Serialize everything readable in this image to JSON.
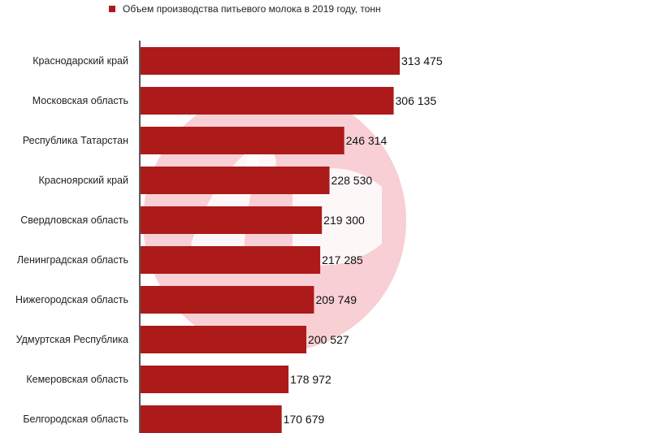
{
  "colors": {
    "bar": "#ac1a1a",
    "watermark": "#f2a9b1",
    "axis": "#222222"
  },
  "watermark": {
    "icon": "logo-circle-watermark"
  },
  "chart_data": {
    "type": "bar",
    "orientation": "horizontal",
    "title": "",
    "xlabel": "",
    "ylabel": "",
    "xlim": [
      0,
      313475
    ],
    "grid": false,
    "legend_position": "top-left",
    "categories": [
      "Краснодарский край",
      "Московская область",
      "Республика Татарстан",
      "Красноярский край",
      "Свердловская область",
      "Ленинградская область",
      "Нижегородская область",
      "Удмуртская Республика",
      "Кемеровская область",
      "Белгородская область"
    ],
    "series": [
      {
        "name": "Объем производства питьевого молока в 2019 году, тонн",
        "values": [
          313475,
          306135,
          246314,
          228530,
          219300,
          217285,
          209749,
          200527,
          178972,
          170679
        ],
        "value_labels": [
          "313 475",
          "306 135",
          "246 314",
          "228 530",
          "219 300",
          "217 285",
          "209 749",
          "200 527",
          "178 972",
          "170 679"
        ]
      }
    ]
  }
}
